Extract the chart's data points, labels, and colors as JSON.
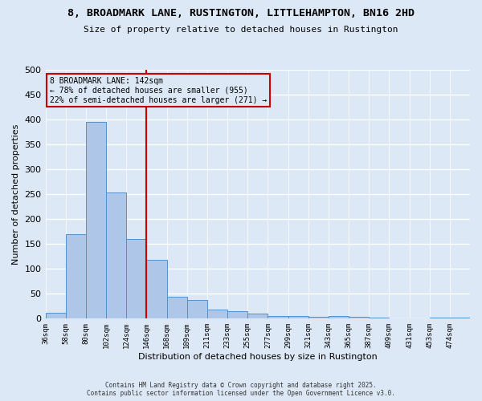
{
  "title": "8, BROADMARK LANE, RUSTINGTON, LITTLEHAMPTON, BN16 2HD",
  "subtitle": "Size of property relative to detached houses in Rustington",
  "xlabel": "Distribution of detached houses by size in Rustington",
  "ylabel": "Number of detached properties",
  "categories": [
    "36sqm",
    "58sqm",
    "80sqm",
    "102sqm",
    "124sqm",
    "146sqm",
    "168sqm",
    "189sqm",
    "211sqm",
    "233sqm",
    "255sqm",
    "277sqm",
    "299sqm",
    "321sqm",
    "343sqm",
    "365sqm",
    "387sqm",
    "409sqm",
    "431sqm",
    "453sqm",
    "474sqm"
  ],
  "values": [
    12,
    170,
    395,
    253,
    160,
    118,
    44,
    37,
    18,
    15,
    10,
    6,
    5,
    3,
    5,
    4,
    2,
    1,
    0,
    2,
    2
  ],
  "bar_color": "#aec6e8",
  "bar_edge_color": "#5590c8",
  "vline_position": 5,
  "vline_color": "#cc0000",
  "property_size": "142sqm",
  "pct_smaller": 78,
  "count_smaller": 955,
  "pct_larger": 22,
  "count_larger": 271,
  "annotation_box_color": "#cc0000",
  "ylim": [
    0,
    500
  ],
  "yticks": [
    0,
    50,
    100,
    150,
    200,
    250,
    300,
    350,
    400,
    450,
    500
  ],
  "background_color": "#dce8f5",
  "grid_color": "#ffffff",
  "footer_line1": "Contains HM Land Registry data © Crown copyright and database right 2025.",
  "footer_line2": "Contains public sector information licensed under the Open Government Licence v3.0."
}
